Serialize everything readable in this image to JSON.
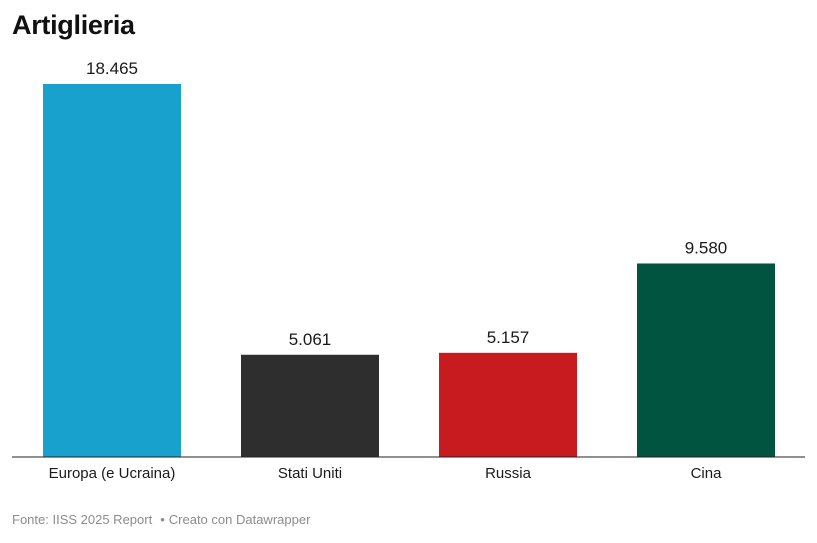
{
  "chart_data": {
    "type": "bar",
    "title": "Artiglieria",
    "categories": [
      "Europa (e Ucraina)",
      "Stati Uniti",
      "Russia",
      "Cina"
    ],
    "values": [
      18465,
      5061,
      5157,
      9580
    ],
    "value_labels": [
      "18.465",
      "5.061",
      "5.157",
      "9.580"
    ],
    "colors": [
      "#18a1cd",
      "#2e2e2e",
      "#c81b1f",
      "#01543f"
    ],
    "xlabel": "",
    "ylabel": "",
    "ylim": [
      0,
      18465
    ],
    "grid": false,
    "legend": "none"
  },
  "footer": {
    "source": "Fonte: IISS 2025 Report",
    "separator": "•",
    "credit": "Creato con Datawrapper"
  }
}
